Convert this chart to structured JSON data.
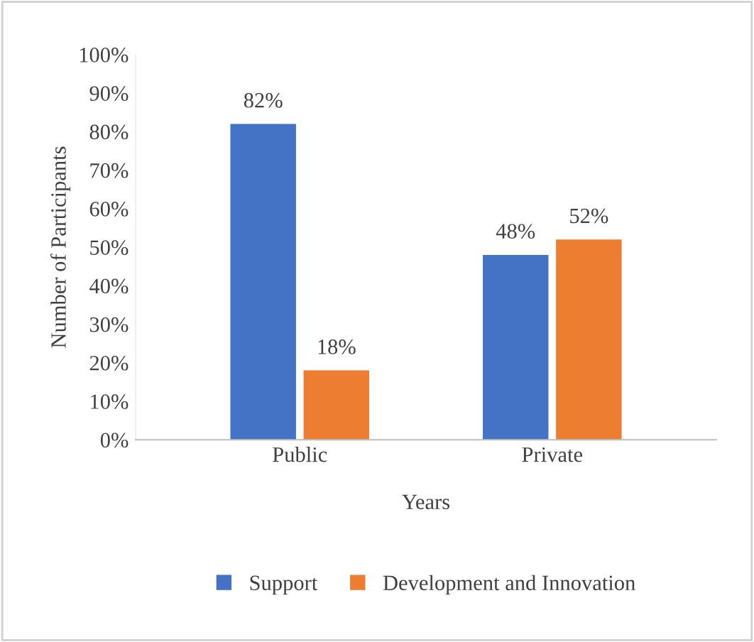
{
  "chart_data": {
    "type": "bar",
    "xlabel": "Years",
    "ylabel": "Number of Participants",
    "categories": [
      "Public",
      "Private"
    ],
    "series": [
      {
        "name": "Support",
        "color": "#4472c4",
        "values": [
          82,
          48
        ],
        "value_labels": [
          "82%",
          "48%"
        ]
      },
      {
        "name": "Development and Innovation",
        "color": "#ed7d31",
        "values": [
          18,
          52
        ],
        "value_labels": [
          "18%",
          "52%"
        ]
      }
    ],
    "ylim": [
      0,
      100
    ],
    "yticks": [
      {
        "value": 0,
        "label": "0%"
      },
      {
        "value": 10,
        "label": "10%"
      },
      {
        "value": 20,
        "label": "20%"
      },
      {
        "value": 30,
        "label": "30%"
      },
      {
        "value": 40,
        "label": "40%"
      },
      {
        "value": 50,
        "label": "50%"
      },
      {
        "value": 60,
        "label": "60%"
      },
      {
        "value": 70,
        "label": "70%"
      },
      {
        "value": 80,
        "label": "80%"
      },
      {
        "value": 90,
        "label": "90%"
      },
      {
        "value": 100,
        "label": "100%"
      }
    ],
    "grid": false,
    "legend": "bottom"
  }
}
